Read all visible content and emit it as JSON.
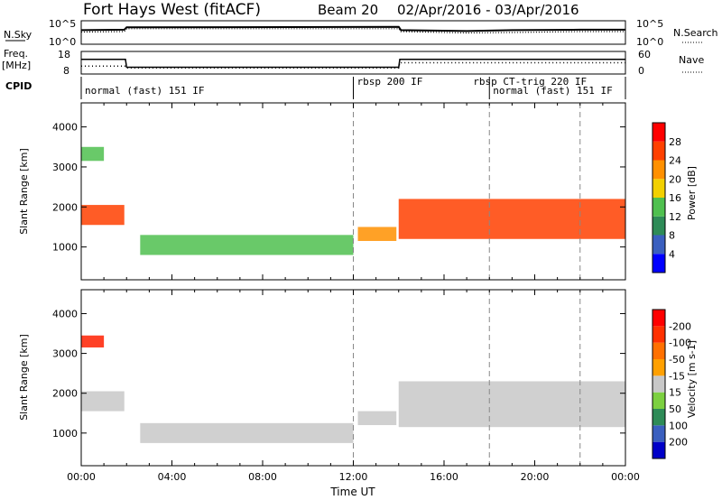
{
  "header": {
    "title": "Fort Hays West (fitACF)",
    "beam": "Beam 20",
    "date_range": "02/Apr/2016 - 03/Apr/2016"
  },
  "chart_data": [
    {
      "type": "line",
      "name": "noise-panel",
      "left_axis": {
        "label": "N.Sky",
        "ticks": [
          "10^5",
          "10^0"
        ]
      },
      "right_axis": {
        "label": "N.Search",
        "ticks": [
          "10^5",
          "10^0"
        ]
      },
      "x": [
        0,
        1.9,
        2.0,
        14.0,
        14.1,
        17,
        19,
        22,
        24
      ],
      "series": [
        {
          "name": "N.Sky",
          "style": "solid",
          "values": [
            3.0,
            3.1,
            3.6,
            3.7,
            3.0,
            2.8,
            3.0,
            3.1,
            3.1
          ]
        },
        {
          "name": "N.Search",
          "style": "dotted",
          "values": [
            2.6,
            2.7,
            3.3,
            3.3,
            2.7,
            2.4,
            2.5,
            2.7,
            2.7
          ]
        }
      ],
      "ylim": [
        0,
        5
      ],
      "xlim": [
        0,
        24
      ]
    },
    {
      "type": "line",
      "name": "freq-panel",
      "left_axis": {
        "label": "Freq.",
        "unit": "[MHz]",
        "ticks": [
          "18",
          "8"
        ]
      },
      "right_axis": {
        "label": "Nave",
        "ticks": [
          "60",
          "0"
        ]
      },
      "x": [
        0,
        1.95,
        2.0,
        14.0,
        14.05,
        24
      ],
      "series": [
        {
          "name": "Freq.",
          "style": "solid",
          "values": [
            14.5,
            14.5,
            11.0,
            11.0,
            14.5,
            14.5
          ]
        },
        {
          "name": "Nave",
          "style": "dotted",
          "values": [
            21,
            21,
            16,
            16,
            30,
            30
          ]
        }
      ],
      "left_ylim": [
        8,
        18
      ],
      "right_ylim": [
        0,
        60
      ],
      "xlim": [
        0,
        24
      ]
    },
    {
      "type": "table",
      "name": "cpid-panel",
      "label": "CPID",
      "segments": [
        {
          "start": 0,
          "label": "normal (fast) 151 IF"
        },
        {
          "start": 12.0,
          "label": "rbsp 200 IF"
        },
        {
          "start": 18.0,
          "label": "rbsp CT-trig 220 IF"
        },
        {
          "start": 18.0,
          "label": "normal (fast) 151 IF"
        }
      ]
    },
    {
      "type": "heatmap",
      "name": "power-panel",
      "ylabel": "Slant Range [km]",
      "yticks": [
        1000,
        2000,
        3000,
        4000
      ],
      "ylim": [
        180,
        4600
      ],
      "xlim": [
        0,
        24
      ],
      "colorbar": {
        "label": "Power [dB]",
        "ticks": [
          "4",
          "8",
          "12",
          "16",
          "20",
          "24",
          "28"
        ],
        "colors": [
          "#0000ff",
          "#3a5fbf",
          "#2e8b57",
          "#4fc04f",
          "#f2d000",
          "#ff9000",
          "#ff4000",
          "#ff0000"
        ]
      },
      "echo_bands": [
        {
          "t0": 0,
          "t1": 1.9,
          "r0": 1550,
          "r1": 2050,
          "level": 26
        },
        {
          "t0": 0,
          "t1": 1.0,
          "r0": 3150,
          "r1": 3500,
          "level": 12
        },
        {
          "t0": 2.6,
          "t1": 12.0,
          "r0": 800,
          "r1": 1300,
          "level": 12
        },
        {
          "t0": 12.2,
          "t1": 13.9,
          "r0": 1150,
          "r1": 1500,
          "level": 20
        },
        {
          "t0": 14.0,
          "t1": 24.0,
          "r0": 1200,
          "r1": 2200,
          "level": 24
        }
      ]
    },
    {
      "type": "heatmap",
      "name": "velocity-panel",
      "ylabel": "Slant Range [km]",
      "yticks": [
        1000,
        2000,
        3000,
        4000
      ],
      "ylim": [
        180,
        4600
      ],
      "xlim": [
        0,
        24
      ],
      "xlabel": "Time UT",
      "xticks": [
        "00:00",
        "04:00",
        "08:00",
        "12:00",
        "16:00",
        "20:00",
        "00:00"
      ],
      "colorbar": {
        "label": "Velocity [m s-1]",
        "ticks": [
          "200",
          "100",
          "50",
          "15",
          "-15",
          "-50",
          "-100",
          "-200"
        ],
        "colors": [
          "#0000c8",
          "#3a5fbf",
          "#2e8b57",
          "#7cd040",
          "#c8c8c8",
          "#ffa000",
          "#ff7000",
          "#ff3000",
          "#ff0000"
        ]
      },
      "echo_bands": [
        {
          "t0": 0,
          "t1": 1.9,
          "r0": 1550,
          "r1": 2050,
          "level": 0
        },
        {
          "t0": 0,
          "t1": 1.0,
          "r0": 3150,
          "r1": 3450,
          "level": -200
        },
        {
          "t0": 2.6,
          "t1": 12.0,
          "r0": 750,
          "r1": 1250,
          "level": 0
        },
        {
          "t0": 12.2,
          "t1": 13.9,
          "r0": 1200,
          "r1": 1550,
          "level": 0
        },
        {
          "t0": 14.0,
          "t1": 24.0,
          "r0": 1150,
          "r1": 2300,
          "level": 0
        }
      ]
    }
  ]
}
